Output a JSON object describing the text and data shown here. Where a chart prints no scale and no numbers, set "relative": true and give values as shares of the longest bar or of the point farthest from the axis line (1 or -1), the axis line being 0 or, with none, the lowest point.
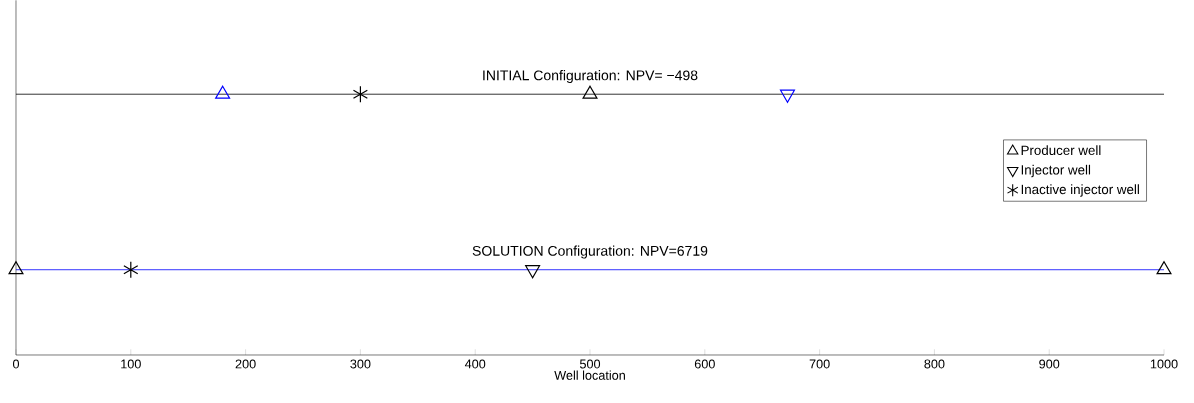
{
  "chart_data": {
    "type": "scatter",
    "relative": true,
    "xlabel": "Well location",
    "xlim": [
      0,
      1000
    ],
    "xticks": [
      0,
      100,
      200,
      300,
      400,
      500,
      600,
      700,
      800,
      900,
      1000
    ],
    "legend": "right",
    "grid": false,
    "series": [
      {
        "name": "Producer well",
        "color": "#000000",
        "marker": "triangle",
        "x": [
          500,
          0,
          1000
        ],
        "values": [
          1,
          0.327,
          0.327
        ]
      },
      {
        "name": "Injector well",
        "color": "#000000",
        "marker": "triangle-down",
        "x": [
          450
        ],
        "values": [
          0.327
        ]
      },
      {
        "name": "Inactive injector well",
        "color": "#000000",
        "marker": "cross",
        "x": [
          300,
          100
        ],
        "values": [
          1,
          0.327
        ]
      },
      {
        "color": "#0000ff",
        "marker": "triangle",
        "x": [
          180
        ],
        "values": [
          1
        ]
      },
      {
        "color": "#0000ff",
        "marker": "triangle-down",
        "x": [
          672
        ],
        "values": [
          1
        ]
      },
      {
        "type": "line",
        "color": "#000000",
        "marker": "none",
        "x": [
          0,
          1000
        ],
        "values": [
          1,
          1
        ]
      },
      {
        "type": "line",
        "color": "#0000ff",
        "marker": "none",
        "x": [
          0,
          1000
        ],
        "values": [
          0.327,
          0.327
        ]
      }
    ],
    "annotations": [
      {
        "text": "INITIAL Configuration: NPV= −498",
        "x": 500,
        "y": 1
      },
      {
        "text": "SOLUTION Configuration: NPV=6719",
        "x": 500,
        "y": 0.327
      }
    ]
  }
}
